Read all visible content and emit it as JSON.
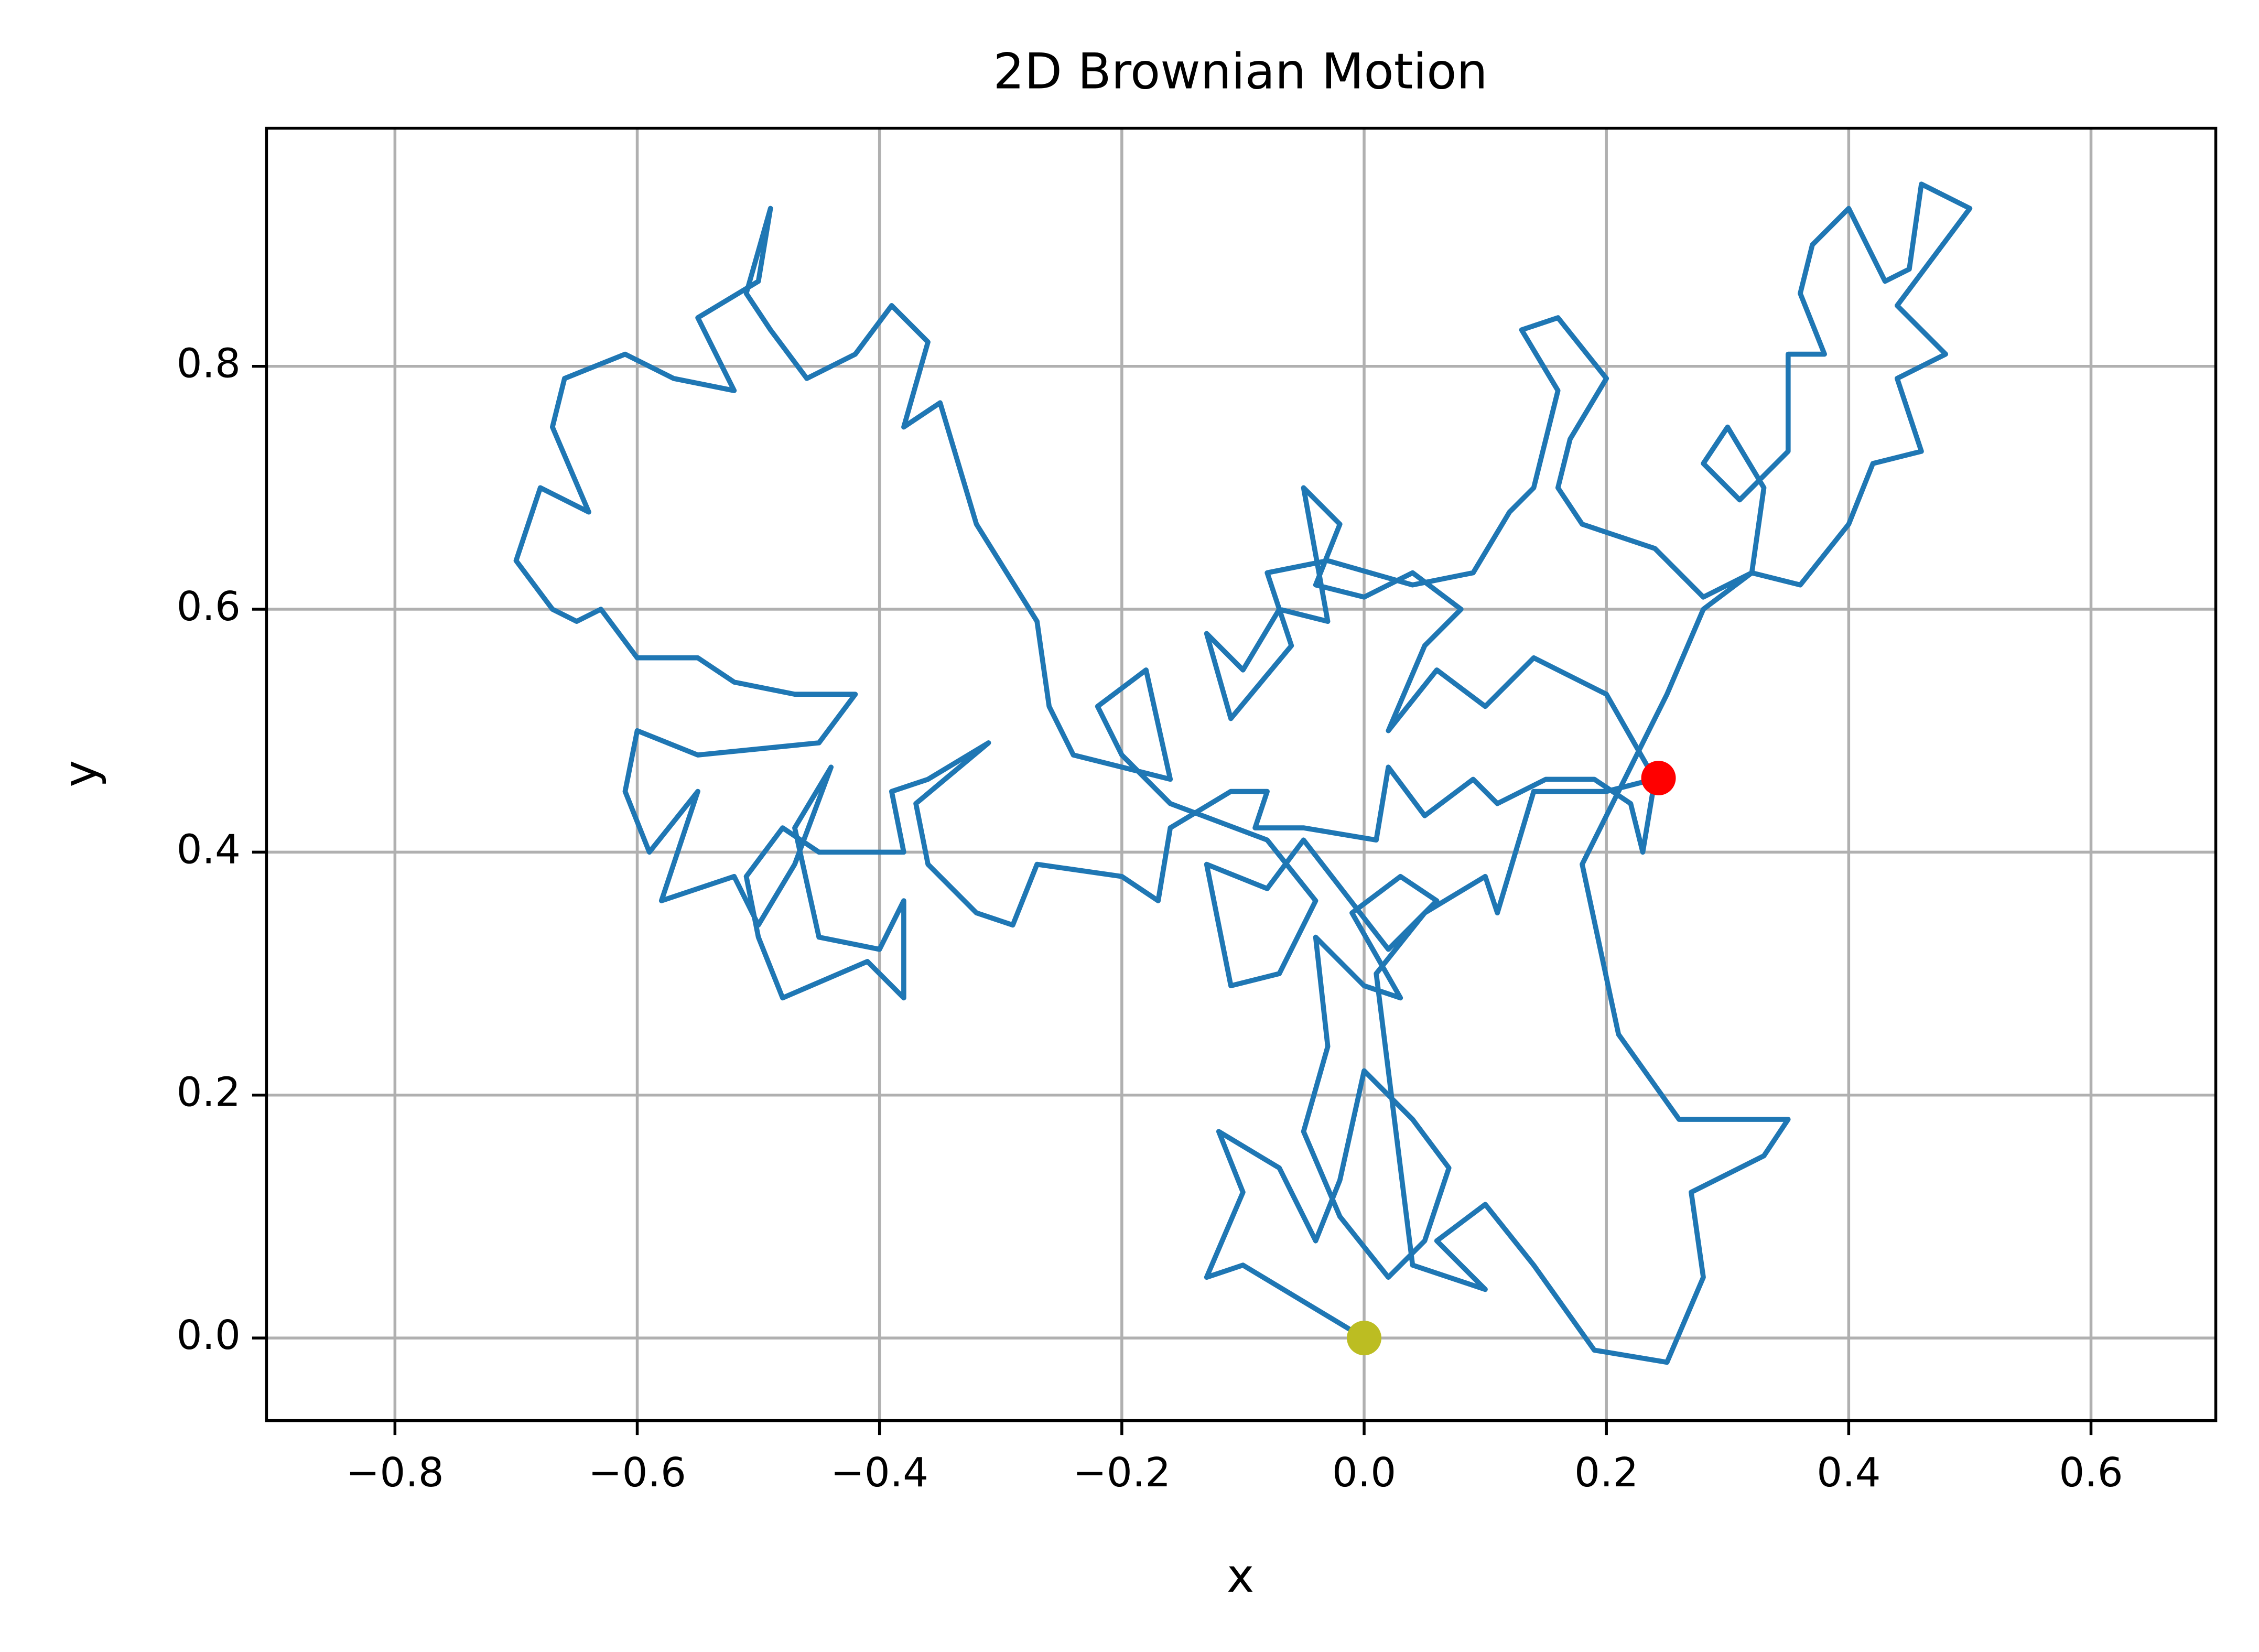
{
  "chart_data": {
    "type": "line",
    "title": "2D Brownian Motion",
    "xlabel": "x",
    "ylabel": "y",
    "xlim": [
      -0.906,
      0.703
    ],
    "ylim": [
      -0.068,
      0.996
    ],
    "xticks": [
      {
        "value": -0.8,
        "label": "−0.8"
      },
      {
        "value": -0.6,
        "label": "−0.6"
      },
      {
        "value": -0.4,
        "label": "−0.4"
      },
      {
        "value": -0.2,
        "label": "−0.2"
      },
      {
        "value": 0,
        "label": "0.0"
      },
      0.2,
      0.4,
      0.6
    ],
    "yticks": [
      {
        "value": 0,
        "label": "0.0"
      },
      0.2,
      0.4,
      0.6,
      0.8
    ],
    "grid": true,
    "series": [
      {
        "color": "#1f77b4",
        "style": "line",
        "x": [
          0,
          -0.05,
          -0.1,
          -0.13,
          -0.1,
          -0.12,
          -0.07,
          -0.04,
          -0.02,
          0,
          0.04,
          0.07,
          0.05,
          0.02,
          -0.02,
          -0.05,
          -0.03,
          -0.04,
          0,
          0.03,
          -0.01,
          0.03,
          0.06,
          0.02,
          -0.05,
          -0.08,
          -0.13,
          -0.11,
          -0.07,
          -0.04,
          -0.08,
          -0.16,
          -0.2,
          -0.22,
          -0.18,
          -0.16,
          -0.24,
          -0.26,
          -0.27,
          -0.32,
          -0.35,
          -0.38,
          -0.36,
          -0.39,
          -0.42,
          -0.46,
          -0.49,
          -0.51,
          -0.49,
          -0.5,
          -0.55,
          -0.52,
          -0.57,
          -0.61,
          -0.66,
          -0.67,
          -0.64,
          -0.68,
          -0.7,
          -0.67,
          -0.65,
          -0.63,
          -0.6,
          -0.55,
          -0.52,
          -0.47,
          -0.42,
          -0.45,
          -0.55,
          -0.6,
          -0.61,
          -0.59,
          -0.55,
          -0.58,
          -0.52,
          -0.5,
          -0.47,
          -0.44,
          -0.47,
          -0.45,
          -0.4,
          -0.38,
          -0.38,
          -0.41,
          -0.48,
          -0.5,
          -0.51,
          -0.48,
          -0.45,
          -0.38,
          -0.39,
          -0.36,
          -0.31,
          -0.37,
          -0.36,
          -0.32,
          -0.29,
          -0.27,
          -0.2,
          -0.17,
          -0.16,
          -0.11,
          -0.08,
          -0.09,
          -0.05,
          0.01,
          0.02,
          0.05,
          0.09,
          0.11,
          0.15,
          0.19,
          0.22,
          0.23,
          0.24,
          0.2,
          0.14,
          0.1,
          0.06,
          0.02,
          0.05,
          0.08,
          0.04,
          0,
          -0.04,
          -0.02,
          -0.05,
          -0.03,
          -0.07,
          -0.1,
          -0.13,
          -0.11,
          -0.06,
          -0.08,
          -0.03,
          0.04,
          0.09,
          0.12,
          0.14,
          0.16,
          0.13,
          0.16,
          0.2,
          0.17,
          0.16,
          0.18,
          0.24,
          0.28,
          0.32,
          0.36,
          0.4,
          0.42,
          0.46,
          0.44,
          0.48,
          0.44,
          0.5,
          0.46,
          0.45,
          0.43,
          0.4,
          0.37,
          0.36,
          0.38,
          0.35,
          0.35,
          0.31,
          0.28,
          0.3,
          0.33,
          0.32,
          0.28,
          0.25,
          0.22,
          0.2,
          0.18,
          0.21,
          0.26,
          0.35,
          0.33,
          0.27,
          0.28,
          0.25,
          0.19,
          0.14,
          0.1,
          0.06,
          0.1,
          0.04,
          0.01,
          0.05,
          0.1,
          0.11,
          0.14,
          0.2,
          0.243
        ],
        "values": [
          0,
          0.03,
          0.06,
          0.05,
          0.12,
          0.17,
          0.14,
          0.08,
          0.13,
          0.22,
          0.18,
          0.14,
          0.08,
          0.05,
          0.1,
          0.17,
          0.24,
          0.33,
          0.29,
          0.28,
          0.35,
          0.38,
          0.36,
          0.32,
          0.41,
          0.37,
          0.39,
          0.29,
          0.3,
          0.36,
          0.41,
          0.44,
          0.48,
          0.52,
          0.55,
          0.46,
          0.48,
          0.52,
          0.59,
          0.67,
          0.77,
          0.75,
          0.82,
          0.85,
          0.81,
          0.79,
          0.83,
          0.86,
          0.93,
          0.87,
          0.84,
          0.78,
          0.79,
          0.81,
          0.79,
          0.75,
          0.68,
          0.7,
          0.64,
          0.6,
          0.59,
          0.6,
          0.56,
          0.56,
          0.54,
          0.53,
          0.53,
          0.49,
          0.48,
          0.5,
          0.45,
          0.4,
          0.45,
          0.36,
          0.38,
          0.34,
          0.39,
          0.47,
          0.42,
          0.33,
          0.32,
          0.36,
          0.28,
          0.31,
          0.28,
          0.33,
          0.38,
          0.42,
          0.4,
          0.4,
          0.45,
          0.46,
          0.49,
          0.44,
          0.39,
          0.35,
          0.34,
          0.39,
          0.38,
          0.36,
          0.42,
          0.45,
          0.45,
          0.42,
          0.42,
          0.41,
          0.47,
          0.43,
          0.46,
          0.44,
          0.46,
          0.46,
          0.44,
          0.4,
          0.46,
          0.53,
          0.56,
          0.52,
          0.55,
          0.5,
          0.57,
          0.6,
          0.63,
          0.61,
          0.62,
          0.67,
          0.7,
          0.59,
          0.6,
          0.55,
          0.58,
          0.51,
          0.57,
          0.63,
          0.64,
          0.62,
          0.63,
          0.68,
          0.7,
          0.78,
          0.83,
          0.84,
          0.79,
          0.74,
          0.7,
          0.67,
          0.65,
          0.61,
          0.63,
          0.62,
          0.67,
          0.72,
          0.73,
          0.79,
          0.81,
          0.85,
          0.93,
          0.95,
          0.88,
          0.87,
          0.93,
          0.9,
          0.86,
          0.81,
          0.81,
          0.73,
          0.69,
          0.72,
          0.75,
          0.7,
          0.63,
          0.6,
          0.53,
          0.47,
          0.43,
          0.39,
          0.25,
          0.18,
          0.18,
          0.15,
          0.12,
          0.05,
          -0.02,
          -0.01,
          0.06,
          0.11,
          0.08,
          0.04,
          0.06,
          0.3,
          0.35,
          0.38,
          0.35,
          0.45,
          0.45,
          0.461
        ]
      },
      {
        "color": "#bcbd22",
        "style": "marker",
        "x": [
          0
        ],
        "values": [
          0
        ]
      },
      {
        "color": "#ff0000",
        "style": "marker",
        "x": [
          0.243
        ],
        "values": [
          0.461
        ]
      }
    ]
  }
}
